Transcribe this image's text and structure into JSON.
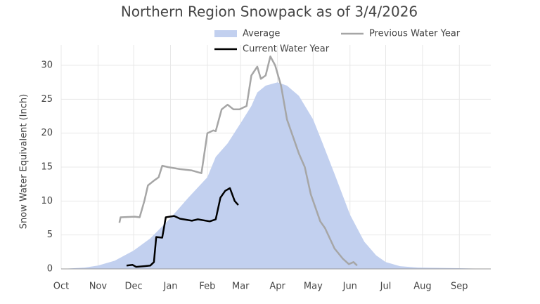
{
  "chart_data": {
    "type": "line",
    "title": "Northern Region Snowpack as of 3/4/2026",
    "y_label": "Snow Water Equivalent (Inch)",
    "xlim": [
      0,
      365
    ],
    "ylim": [
      0,
      33
    ],
    "xticks": [
      {
        "value": 0,
        "label": "Oct"
      },
      {
        "value": 31,
        "label": "Nov"
      },
      {
        "value": 61,
        "label": "Dec"
      },
      {
        "value": 92,
        "label": "Jan"
      },
      {
        "value": 123,
        "label": "Feb"
      },
      {
        "value": 151,
        "label": "Mar"
      },
      {
        "value": 182,
        "label": "Apr"
      },
      {
        "value": 212,
        "label": "May"
      },
      {
        "value": 243,
        "label": "Jun"
      },
      {
        "value": 273,
        "label": "Jul"
      },
      {
        "value": 304,
        "label": "Aug"
      },
      {
        "value": 335,
        "label": "Sep"
      }
    ],
    "yticks": [
      0,
      5,
      10,
      15,
      20,
      25,
      30
    ],
    "grid": true,
    "series": [
      {
        "name": "Average",
        "kind": "area",
        "color": "#c2d0ef",
        "x": [
          0,
          20,
          31,
          45,
          61,
          75,
          92,
          107,
          123,
          130,
          140,
          151,
          160,
          165,
          172,
          182,
          190,
          200,
          212,
          220,
          230,
          243,
          255,
          265,
          273,
          285,
          300,
          335,
          361
        ],
        "values": [
          0,
          0.2,
          0.5,
          1.2,
          2.7,
          4.5,
          7.5,
          10.5,
          13.5,
          16.5,
          18.5,
          21.5,
          24,
          26,
          27,
          27.5,
          27,
          25.5,
          22,
          18.5,
          14,
          8,
          4,
          2,
          1,
          0.4,
          0.2,
          0.1,
          0
        ]
      },
      {
        "name": "Previous Water Year",
        "kind": "line",
        "color": "#a6a6a6",
        "x": [
          49,
          50,
          62,
          66,
          70,
          73,
          78,
          82,
          85,
          90,
          100,
          110,
          118,
          123,
          128,
          130,
          135,
          140,
          145,
          150,
          156,
          160,
          165,
          168,
          172,
          176,
          180,
          185,
          190,
          200,
          205,
          210,
          218,
          222,
          230,
          237,
          242,
          246,
          249
        ],
        "values": [
          6.8,
          7.6,
          7.7,
          7.6,
          10,
          12.3,
          13,
          13.5,
          15.2,
          15,
          14.7,
          14.5,
          14.1,
          20,
          20.4,
          20.3,
          23.5,
          24.2,
          23.5,
          23.5,
          24,
          28.5,
          29.8,
          28,
          28.5,
          31.3,
          30,
          27,
          22,
          17,
          15,
          11,
          7,
          6,
          3,
          1.5,
          0.7,
          1,
          0.5
        ]
      },
      {
        "name": "Current Water Year",
        "kind": "line",
        "color": "#000000",
        "x": [
          55,
          60,
          63,
          70,
          75,
          78,
          80,
          85,
          88,
          95,
          100,
          110,
          115,
          125,
          130,
          134,
          138,
          142,
          146,
          149
        ],
        "values": [
          0.5,
          0.6,
          0.3,
          0.4,
          0.5,
          1,
          4.7,
          4.6,
          7.6,
          7.8,
          7.4,
          7.1,
          7.3,
          7,
          7.3,
          10.5,
          11.5,
          11.9,
          10,
          9.4
        ]
      }
    ]
  }
}
